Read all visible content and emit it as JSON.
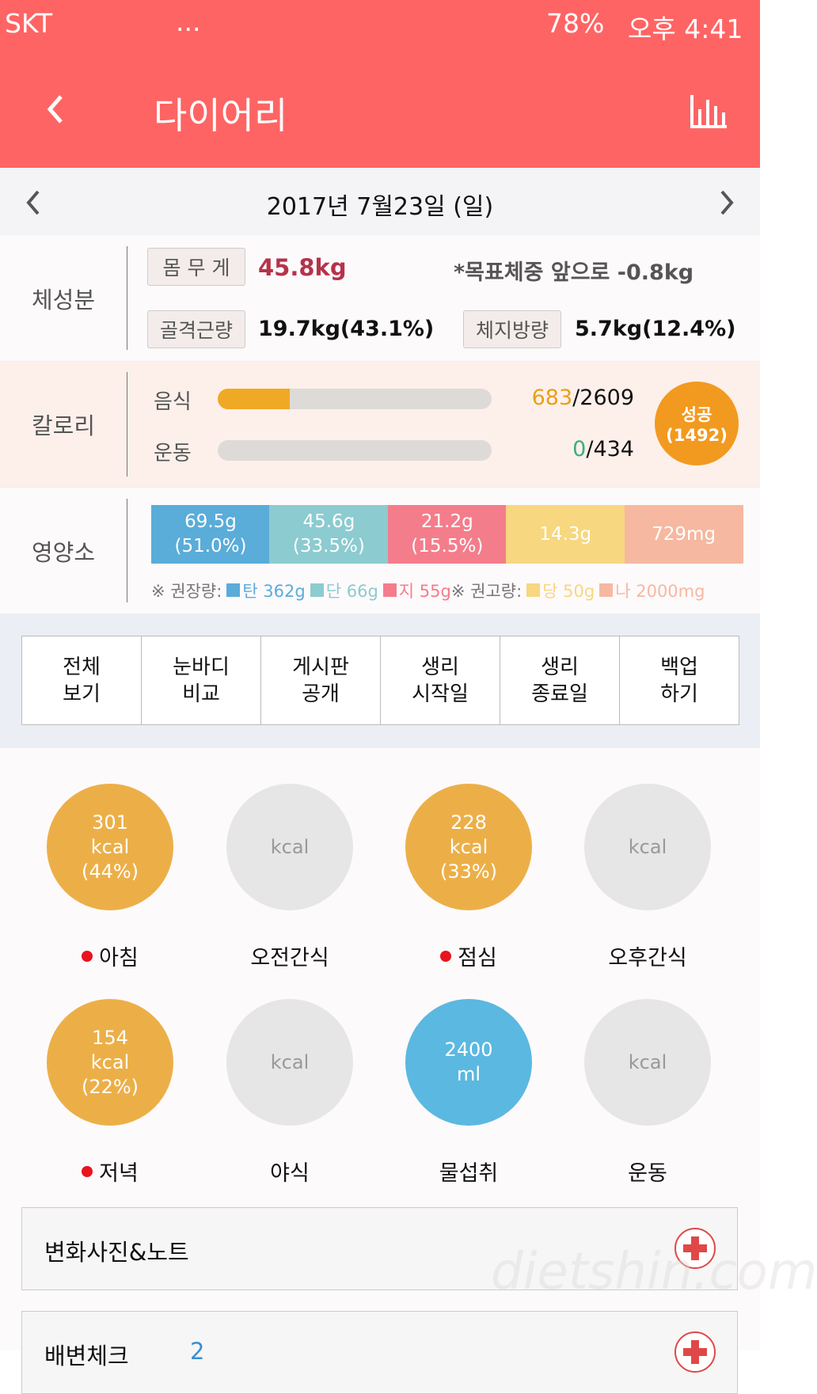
{
  "status_bar": {
    "carrier": "SKT",
    "more": "...",
    "battery": "78%",
    "time": "오후 4:41"
  },
  "header": {
    "title": "다이어리"
  },
  "date": "2017년 7월23일 (일)",
  "body_composition": {
    "label": "체성분",
    "weight_label": "몸 무 게",
    "weight": "45.8kg",
    "goal_note": "*목표체중 앞으로 -0.8kg",
    "muscle_label": "골격근량",
    "muscle": "19.7kg(43.1%)",
    "fat_label": "체지방량",
    "fat": "5.7kg(12.4%)"
  },
  "calories": {
    "label": "칼로리",
    "food": {
      "label": "음식",
      "eaten": 683,
      "separator": "/",
      "goal": 2609
    },
    "exercise": {
      "label": "운동",
      "burned": 0,
      "separator": "/",
      "goal": 434
    },
    "status": {
      "label": "성공",
      "detail": "(1492)"
    }
  },
  "nutrients": {
    "label": "영양소",
    "segments": [
      {
        "amount": "69.5g",
        "share": "(51.0%)",
        "color": "#5aacd9"
      },
      {
        "amount": "45.6g",
        "share": "(33.5%)",
        "color": "#8ccbd0"
      },
      {
        "amount": "21.2g",
        "share": "(15.5%)",
        "color": "#f47d8c"
      },
      {
        "amount": "14.3g",
        "color": "#f7d77f"
      },
      {
        "amount": "729mg",
        "color": "#f6b8a0"
      }
    ],
    "legend": [
      {
        "text": "※ 권장량:"
      },
      {
        "text": "탄 362g",
        "color": "#5aacd9"
      },
      {
        "text": "단 66g",
        "color": "#8ccbd0"
      },
      {
        "text": "지 55g",
        "color": "#f47d8c"
      },
      {
        "text": "※ 권고량:"
      },
      {
        "text": "당 50g",
        "color": "#f7d77f"
      },
      {
        "text": "나 2000mg",
        "color": "#f6b8a0"
      }
    ]
  },
  "buttons": [
    [
      "전체",
      "보기"
    ],
    [
      "눈바디",
      "비교"
    ],
    [
      "게시판",
      "공개"
    ],
    [
      "생리",
      "시작일"
    ],
    [
      "생리",
      "종료일"
    ],
    [
      "백업",
      "하기"
    ]
  ],
  "meals": [
    {
      "name": "아침",
      "lines": [
        "301",
        "kcal",
        "(44%)"
      ],
      "color": "#ecaf48",
      "dot": true
    },
    {
      "name": "오전간식",
      "lines": [
        "kcal"
      ],
      "color": "#e6e6e6"
    },
    {
      "name": "점심",
      "lines": [
        "228",
        "kcal",
        "(33%)"
      ],
      "color": "#ecaf48",
      "dot": true
    },
    {
      "name": "오후간식",
      "lines": [
        "kcal"
      ],
      "color": "#e6e6e6"
    },
    {
      "name": "저녁",
      "lines": [
        "154",
        "kcal",
        "(22%)"
      ],
      "color": "#ecaf48",
      "dot": true
    },
    {
      "name": "야식",
      "lines": [
        "kcal"
      ],
      "color": "#e6e6e6"
    },
    {
      "name": "물섭취",
      "lines": [
        "2400",
        "ml"
      ],
      "color": "#5bb8e0"
    },
    {
      "name": "운동",
      "lines": [
        "kcal"
      ],
      "color": "#e6e6e6"
    }
  ],
  "cards": [
    {
      "title": "변화사진&노트"
    },
    {
      "title": "배변체크",
      "value": "2"
    }
  ],
  "watermark": "dietshin.com"
}
